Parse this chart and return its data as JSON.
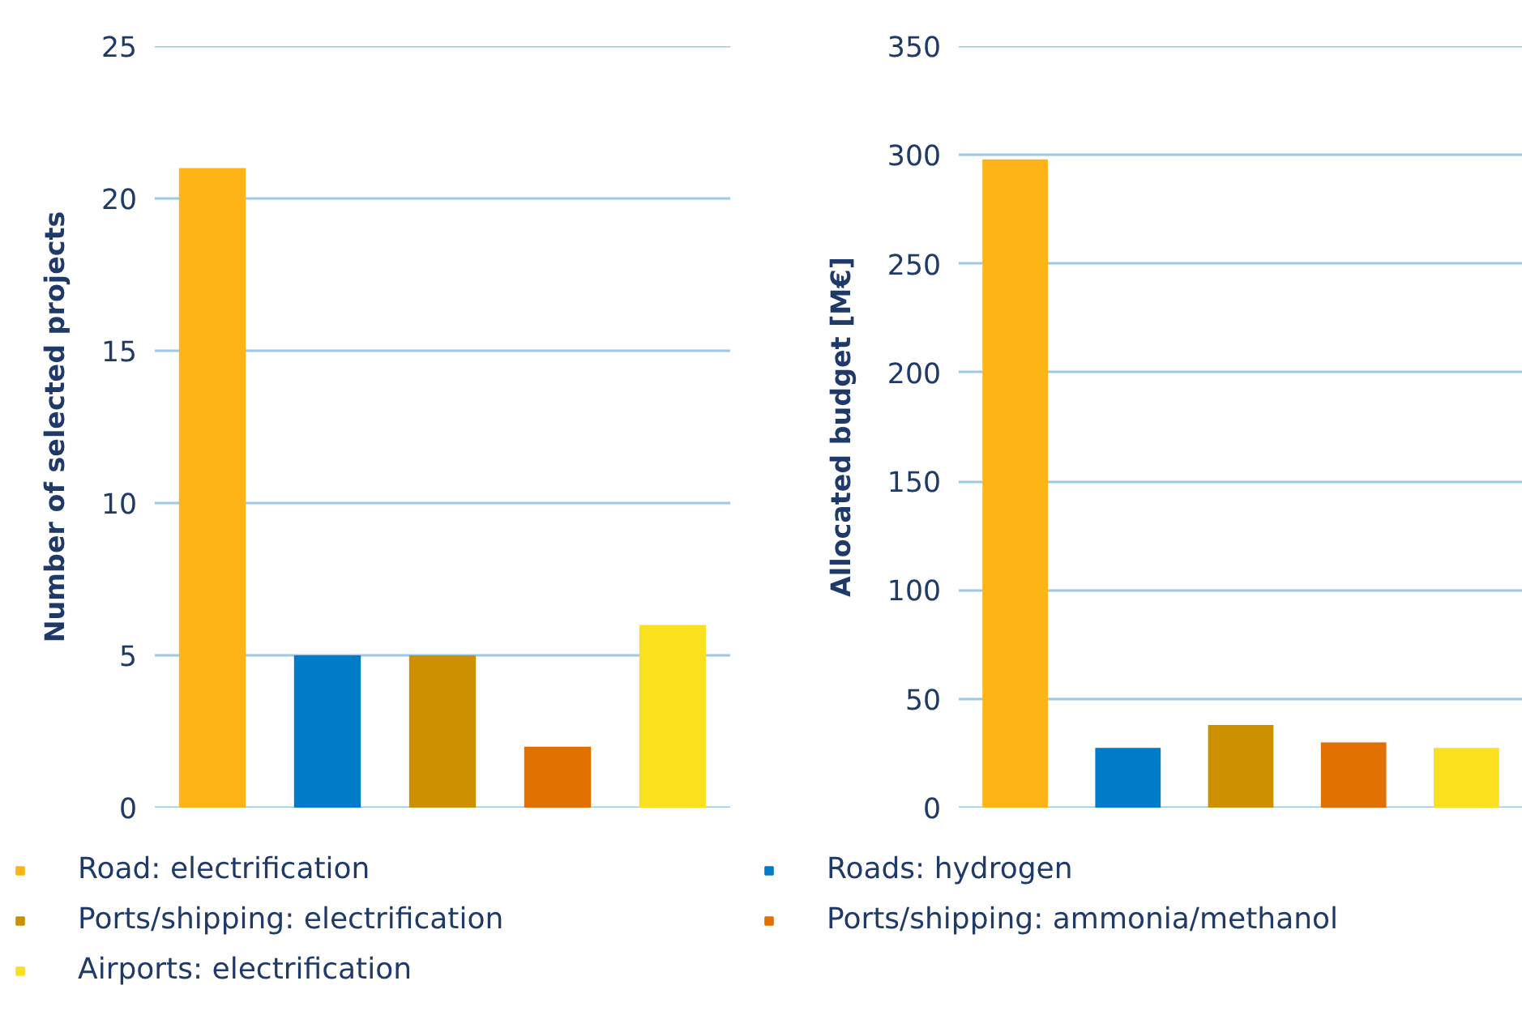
{
  "chart_data": [
    {
      "type": "bar",
      "ylabel": "Number of selected projects",
      "categories": [
        null
      ],
      "series": [
        {
          "name": "Road: electrification",
          "color": "#fdb515",
          "values": [
            21
          ]
        },
        {
          "name": "Roads: hydrogen",
          "color": "#007bc8",
          "values": [
            5
          ]
        },
        {
          "name": "Ports/shipping: electrification",
          "color": "#cc9000",
          "values": [
            5
          ]
        },
        {
          "name": "Ports/shipping: ammonia/methanol",
          "color": "#e07000",
          "values": [
            2
          ]
        },
        {
          "name": "Airports: electrification",
          "color": "#f9e11e",
          "values": [
            6
          ]
        }
      ],
      "ylim": [
        0,
        25
      ],
      "yticks": [
        0,
        5,
        10,
        15,
        20,
        25
      ],
      "grid": "y",
      "tick_labels": "y",
      "legend": "bottom"
    },
    {
      "type": "bar",
      "ylabel": "Allocated budget [M€]",
      "categories": [
        null
      ],
      "series": [
        {
          "color": "#fdb515",
          "values": [
            298
          ]
        },
        {
          "color": "#007bc8",
          "values": [
            27.5
          ]
        },
        {
          "color": "#cc9000",
          "values": [
            38
          ]
        },
        {
          "color": "#e07000",
          "values": [
            30
          ]
        },
        {
          "color": "#f9e11e",
          "values": [
            27.5
          ]
        }
      ],
      "ylim": [
        0,
        350
      ],
      "yticks": [
        0,
        50,
        100,
        150,
        200,
        250,
        300,
        350
      ],
      "grid": "y",
      "tick_labels": "y"
    }
  ]
}
